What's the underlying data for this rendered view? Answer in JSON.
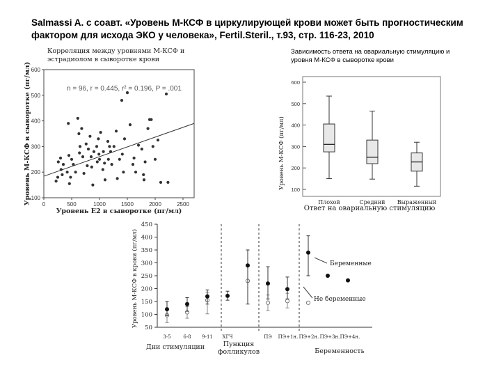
{
  "header": {
    "title_line1": "Salmassi A. с соавт. «Уровень М-КСФ в циркулирующей крови может быть прогностическим",
    "title_line2": "фактором для исхода ЭКО у человека», Fertil.Steril., т.93, стр. 116-23, 2010"
  },
  "chart_data": [
    {
      "type": "scatter",
      "title_line1": "Корреляция между уровнями М-КСФ и",
      "title_line2": "эстрадиолом в сыворотке крови",
      "stats": "n = 96, r = 0.445, r² = 0.196, P = .001",
      "xlabel": "Уровень Е2 в сыворотке (пг/мл)",
      "ylabel": "Уровень М-КСФ в сыворотке (пг/мл)",
      "xlim": [
        0,
        2700
      ],
      "ylim": [
        100,
        600
      ],
      "xticks": [
        "0",
        "500",
        "1000",
        "1500",
        "2000",
        "2500"
      ],
      "yticks": [
        "100",
        "200",
        "300",
        "400",
        "500",
        "600"
      ],
      "regression": {
        "x": [
          0,
          2700
        ],
        "y": [
          184,
          390
        ]
      },
      "points": [
        [
          220,
          165
        ],
        [
          250,
          180
        ],
        [
          260,
          240
        ],
        [
          300,
          255
        ],
        [
          310,
          210
        ],
        [
          330,
          190
        ],
        [
          350,
          230
        ],
        [
          420,
          200
        ],
        [
          440,
          390
        ],
        [
          450,
          265
        ],
        [
          460,
          155
        ],
        [
          480,
          180
        ],
        [
          500,
          250
        ],
        [
          530,
          230
        ],
        [
          570,
          200
        ],
        [
          610,
          410
        ],
        [
          630,
          350
        ],
        [
          640,
          275
        ],
        [
          650,
          300
        ],
        [
          680,
          370
        ],
        [
          700,
          260
        ],
        [
          720,
          195
        ],
        [
          760,
          310
        ],
        [
          780,
          225
        ],
        [
          800,
          290
        ],
        [
          830,
          340
        ],
        [
          850,
          260
        ],
        [
          860,
          220
        ],
        [
          880,
          150
        ],
        [
          900,
          280
        ],
        [
          950,
          300
        ],
        [
          960,
          240
        ],
        [
          980,
          330
        ],
        [
          990,
          270
        ],
        [
          1000,
          250
        ],
        [
          1020,
          355
        ],
        [
          1060,
          210
        ],
        [
          1070,
          280
        ],
        [
          1090,
          235
        ],
        [
          1100,
          170
        ],
        [
          1150,
          320
        ],
        [
          1160,
          250
        ],
        [
          1180,
          300
        ],
        [
          1200,
          280
        ],
        [
          1220,
          230
        ],
        [
          1260,
          300
        ],
        [
          1300,
          360
        ],
        [
          1320,
          175
        ],
        [
          1360,
          250
        ],
        [
          1400,
          480
        ],
        [
          1410,
          270
        ],
        [
          1430,
          200
        ],
        [
          1450,
          330
        ],
        [
          1500,
          510
        ],
        [
          1550,
          385
        ],
        [
          1600,
          230
        ],
        [
          1620,
          255
        ],
        [
          1650,
          200
        ],
        [
          1700,
          305
        ],
        [
          1760,
          290
        ],
        [
          1790,
          190
        ],
        [
          1800,
          170
        ],
        [
          1820,
          240
        ],
        [
          1870,
          370
        ],
        [
          1900,
          405
        ],
        [
          1930,
          405
        ],
        [
          1960,
          300
        ],
        [
          2000,
          250
        ],
        [
          2050,
          325
        ],
        [
          2100,
          160
        ],
        [
          2200,
          505
        ],
        [
          2230,
          160
        ]
      ]
    },
    {
      "type": "box",
      "title_line1": "Зависимость ответа на овариальную стимуляцию и",
      "title_line2": "уровня М-КСФ в сыворотке крови",
      "xlabel": "Ответ на овариальную стимуляцию",
      "ylabel": "Уровень М-КСФ (пг/мл)",
      "ylim": [
        100,
        600
      ],
      "yticks": [
        "100",
        "200",
        "300",
        "400",
        "500",
        "600"
      ],
      "groups": [
        {
          "name": "Плохой",
          "whisker_low": 150,
          "q1": 275,
          "median": 310,
          "q3": 405,
          "whisker_high": 535
        },
        {
          "name": "Средний",
          "whisker_low": 148,
          "q1": 220,
          "median": 250,
          "q3": 330,
          "whisker_high": 465
        },
        {
          "name": "Выраженный",
          "whisker_low": 115,
          "q1": 185,
          "median": 228,
          "q3": 270,
          "whisker_high": 320
        }
      ]
    },
    {
      "type": "errorbar",
      "ylabel": "Уровень М-КСФ в крови (пг/мл)",
      "ylim": [
        50,
        450
      ],
      "yticks": [
        "50",
        "100",
        "150",
        "200",
        "250",
        "300",
        "350",
        "400",
        "450"
      ],
      "categories": [
        "3-5",
        "6-8",
        "9-11",
        "ХГЧ",
        "",
        "ПЭ",
        "ПЭ+1н.",
        "ПЭ+2н.",
        "ПЭ+3н.",
        "ПЭ+4н."
      ],
      "group_labels": [
        "Дни стимуляции",
        "Пункция фолликулов",
        "Беременность"
      ],
      "series": [
        {
          "name": "Беременные",
          "values": [
            120,
            140,
            170,
            172,
            290,
            220,
            198,
            340,
            250,
            232
          ],
          "lower": [
            95,
            112,
            140,
            155,
            140,
            160,
            160,
            250,
            null,
            null
          ],
          "upper": [
            150,
            165,
            195,
            190,
            350,
            285,
            245,
            405,
            null,
            null
          ]
        },
        {
          "name": "Не беременные",
          "values": [
            97,
            108,
            155,
            null,
            230,
            145,
            152,
            145,
            null,
            null
          ],
          "lower": [
            68,
            85,
            102,
            null,
            null,
            115,
            125,
            null,
            null,
            null
          ],
          "upper": [
            120,
            130,
            185,
            null,
            null,
            175,
            182,
            null,
            null,
            null
          ]
        }
      ],
      "legend": {
        "pregnant": "Беременные",
        "not_pregnant": "Не беременные"
      }
    }
  ]
}
